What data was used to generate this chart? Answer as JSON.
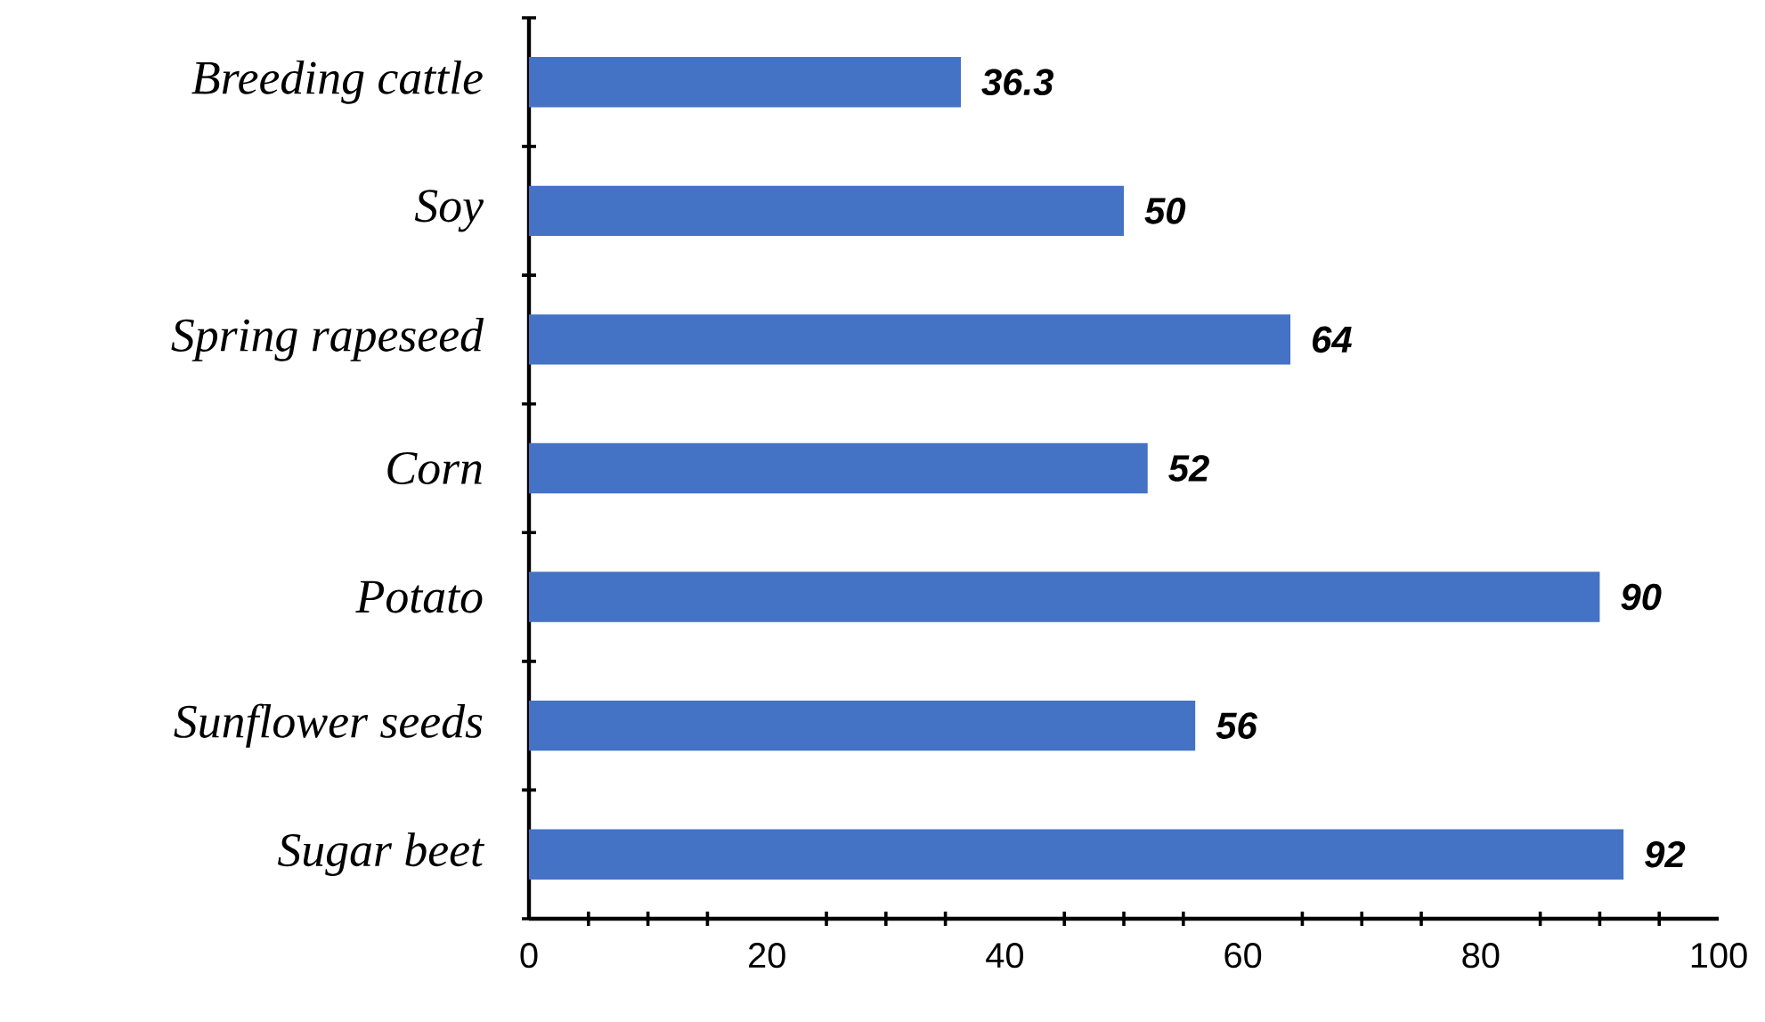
{
  "chart_data": {
    "type": "bar",
    "orientation": "horizontal",
    "categories": [
      "Breeding cattle",
      "Soy",
      "Spring rapeseed",
      "Corn",
      "Potato",
      "Sunflower seeds",
      "Sugar beet"
    ],
    "values": [
      36.3,
      50,
      64,
      52,
      90,
      56,
      92
    ],
    "color": "#4472c4",
    "xlim": [
      0,
      100
    ],
    "xticks": [
      0,
      20,
      40,
      60,
      80,
      100
    ],
    "data_labels": true
  }
}
